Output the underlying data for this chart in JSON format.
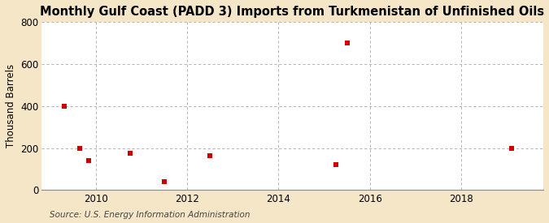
{
  "title": "Monthly Gulf Coast (PADD 3) Imports from Turkmenistan of Unfinished Oils",
  "ylabel": "Thousand Barrels",
  "source": "Source: U.S. Energy Information Administration",
  "fig_background_color": "#f5e6c8",
  "plot_background_color": "#ffffff",
  "grid_color": "#aaaaaa",
  "point_color": "#cc0000",
  "x_values": [
    2009.3,
    2009.65,
    2009.85,
    2010.75,
    2011.5,
    2012.5,
    2015.25,
    2015.5,
    2019.1
  ],
  "y_values": [
    400,
    200,
    140,
    175,
    40,
    165,
    120,
    700,
    197
  ],
  "xlim": [
    2008.8,
    2019.8
  ],
  "ylim": [
    0,
    800
  ],
  "yticks": [
    0,
    200,
    400,
    600,
    800
  ],
  "xticks": [
    2010,
    2012,
    2014,
    2016,
    2018
  ],
  "title_fontsize": 10.5,
  "label_fontsize": 8.5,
  "tick_fontsize": 8.5,
  "source_fontsize": 7.5
}
